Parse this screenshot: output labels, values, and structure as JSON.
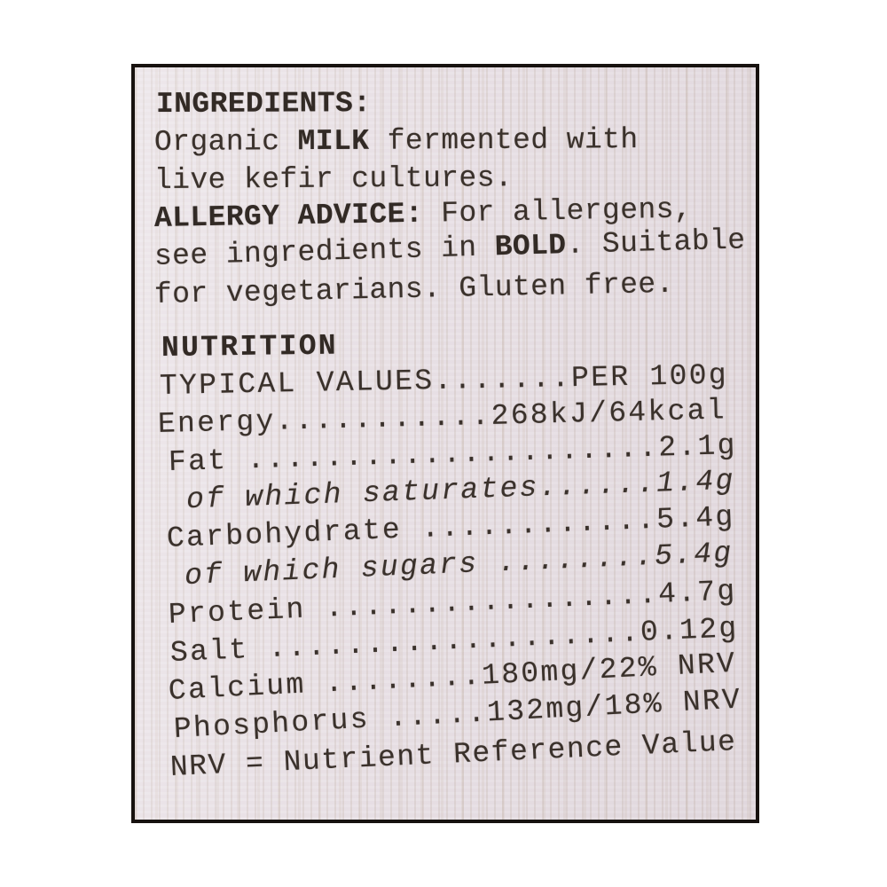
{
  "photo": {
    "background_color": "#ffffff"
  },
  "label": {
    "type": "nutrition-label",
    "colors": {
      "paper": "#e8e0e5",
      "paper_streak": "#cbb9a9",
      "ink": "#3a312b",
      "border": "#17120f"
    },
    "ingredients": {
      "heading": "INGREDIENTS:",
      "body": [
        [
          {
            "t": "Organic "
          },
          {
            "t": "MILK",
            "b": true
          },
          {
            "t": " fermented with"
          }
        ],
        [
          {
            "t": "live kefir cultures."
          }
        ]
      ]
    },
    "allergy": {
      "lines": [
        [
          {
            "t": "ALLERGY ADVICE:",
            "b": true
          },
          {
            "t": " For allergens,"
          }
        ],
        [
          {
            "t": "see ingredients in "
          },
          {
            "t": "BOLD",
            "b": true
          },
          {
            "t": ". Suitable"
          }
        ],
        [
          {
            "t": "for vegetarians. Gluten free."
          }
        ]
      ]
    },
    "nutrition": {
      "heading": "NUTRITION",
      "header_row": {
        "left": "TYPICAL VALUES",
        "leader": ".......",
        "right": "PER 100g"
      },
      "rows": [
        {
          "name": "Energy",
          "leader": "...........",
          "value": "268kJ/64kcal"
        },
        {
          "name": "Fat ",
          "leader": ".....................",
          "value": "2.1g"
        },
        {
          "name": " of which saturates",
          "leader": "......",
          "value": "1.4g",
          "italic": true
        },
        {
          "name": "Carbohydrate ",
          "leader": "............",
          "value": "5.4g"
        },
        {
          "name": " of which sugars ",
          "leader": "........",
          "value": "5.4g",
          "italic": true
        },
        {
          "name": "Protein ",
          "leader": ".................",
          "value": "4.7g"
        },
        {
          "name": "Salt ",
          "leader": "...................",
          "value": "0.12g"
        },
        {
          "name": "Calcium ",
          "leader": "........",
          "value": "180mg/22% NRV"
        },
        {
          "name": "Phosphorus ",
          "leader": ".....",
          "value": "132mg/18% NRV"
        }
      ],
      "footnote": "NRV = Nutrient Reference Value"
    }
  }
}
